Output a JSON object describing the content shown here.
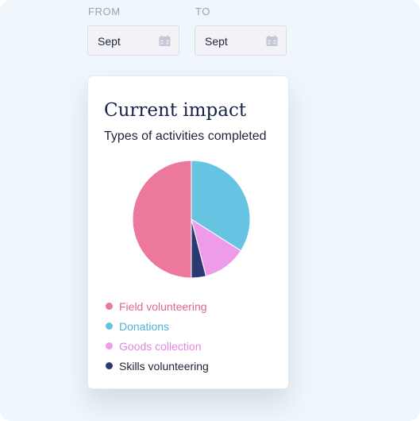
{
  "filters": {
    "from": {
      "label": "FROM",
      "value": "Sept"
    },
    "to": {
      "label": "TO",
      "value": "Sept"
    }
  },
  "card": {
    "title": "Current impact",
    "subtitle": "Types of activities completed"
  },
  "chart_data": {
    "type": "pie",
    "labels": [
      "Field volunteering",
      "Donations",
      "Goods collection",
      "Skills volunteering"
    ],
    "values": [
      50,
      34,
      12,
      4
    ],
    "colors": [
      "#ec789c",
      "#67c3e2",
      "#ee9cea",
      "#2c3a74"
    ],
    "legend_text_colors": [
      "#e0678e",
      "#4fb3d8",
      "#e485e0",
      "#1e2436"
    ],
    "legend_position": "bottom"
  },
  "icons": {
    "date_picker": "calendar-icon"
  }
}
